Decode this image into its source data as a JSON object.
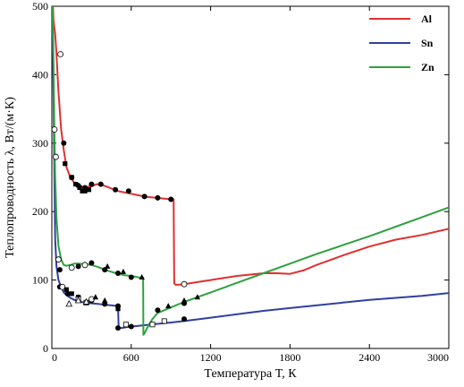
{
  "chart_data": {
    "type": "line",
    "title": "",
    "xlabel": "Температура T, К",
    "ylabel": "Теплопроводность λ, Вт/(м·К)",
    "xlim": [
      0,
      3000
    ],
    "ylim": [
      0,
      500
    ],
    "x_ticks": [
      0,
      600,
      1200,
      1800,
      2400,
      3000
    ],
    "y_ticks": [
      0,
      100,
      200,
      300,
      400,
      500
    ],
    "grid": false,
    "legend_position": "top-right",
    "series": [
      {
        "name": "Al",
        "color": "#e03030",
        "x": [
          8,
          12,
          18,
          25,
          35,
          50,
          70,
          90,
          110,
          140,
          170,
          200,
          230,
          260,
          300,
          340,
          380,
          420,
          460,
          500,
          550,
          600,
          650,
          700,
          750,
          800,
          850,
          900,
          920,
          925,
          935,
          960,
          1000,
          1100,
          1200,
          1300,
          1400,
          1500,
          1600,
          1700,
          1800,
          1900,
          2000,
          2200,
          2400,
          2600,
          2800,
          3000
        ],
        "y": [
          500,
          480,
          470,
          460,
          430,
          375,
          320,
          290,
          265,
          250,
          242,
          237,
          236,
          236,
          237,
          240,
          239,
          236,
          233,
          230,
          228,
          226,
          224,
          222,
          221,
          220,
          219,
          218,
          218,
          95,
          93,
          93,
          94,
          97,
          100,
          103,
          106,
          108,
          110,
          110,
          109,
          114,
          122,
          136,
          149,
          159,
          166,
          175
        ]
      },
      {
        "name": "Sn",
        "color": "#3040a0",
        "x": [
          5,
          8,
          12,
          18,
          25,
          35,
          50,
          70,
          90,
          110,
          140,
          170,
          200,
          250,
          300,
          350,
          400,
          450,
          500,
          505,
          510,
          530,
          560,
          600,
          700,
          800,
          900,
          1000,
          1200,
          1400,
          1600,
          1800,
          2000,
          2200,
          2400,
          2600,
          2800,
          3000
        ],
        "y": [
          500,
          440,
          380,
          270,
          160,
          120,
          100,
          90,
          82,
          78,
          74,
          71,
          69,
          67,
          66,
          65,
          64,
          63,
          62,
          31,
          30,
          30,
          31,
          32,
          34,
          36,
          38,
          40,
          45,
          50,
          55,
          59,
          63,
          67,
          71,
          74,
          77,
          81
        ]
      },
      {
        "name": "Zn",
        "color": "#30a040",
        "x": [
          5,
          8,
          12,
          18,
          25,
          35,
          50,
          70,
          90,
          110,
          140,
          170,
          200,
          250,
          300,
          350,
          400,
          450,
          500,
          550,
          600,
          650,
          690,
          692,
          700,
          720,
          760,
          800,
          900,
          1000,
          1200,
          1400,
          1600,
          1800,
          2000,
          2200,
          2400,
          2600,
          2800,
          3000
        ],
        "y": [
          500,
          470,
          420,
          330,
          250,
          190,
          150,
          130,
          122,
          121,
          122,
          124,
          124,
          123,
          122,
          119,
          115,
          112,
          109,
          107,
          106,
          104,
          103,
          20,
          22,
          30,
          43,
          52,
          60,
          68,
          82,
          96,
          110,
          124,
          138,
          151,
          164,
          178,
          192,
          206
        ]
      }
    ],
    "markers": {
      "filled_circle": [
        [
          60,
          115
        ],
        [
          90,
          300
        ],
        [
          150,
          250
        ],
        [
          200,
          238
        ],
        [
          250,
          235
        ],
        [
          300,
          240
        ],
        [
          370,
          240
        ],
        [
          480,
          232
        ],
        [
          580,
          230
        ],
        [
          700,
          222
        ],
        [
          800,
          220
        ],
        [
          900,
          218
        ],
        [
          60,
          90
        ],
        [
          120,
          80
        ],
        [
          200,
          75
        ],
        [
          300,
          70
        ],
        [
          400,
          65
        ],
        [
          500,
          62
        ],
        [
          500,
          30
        ],
        [
          600,
          32
        ],
        [
          1000,
          43
        ],
        [
          200,
          120
        ],
        [
          300,
          125
        ],
        [
          400,
          115
        ],
        [
          500,
          110
        ],
        [
          600,
          104
        ],
        [
          800,
          56
        ],
        [
          1000,
          66
        ]
      ],
      "open_circle": [
        [
          20,
          320
        ],
        [
          30,
          280
        ],
        [
          50,
          130
        ],
        [
          65,
          430
        ],
        [
          80,
          90
        ],
        [
          150,
          118
        ],
        [
          250,
          122
        ],
        [
          300,
          72
        ],
        [
          1000,
          94
        ]
      ],
      "filled_square": [
        [
          100,
          270
        ],
        [
          150,
          250
        ],
        [
          180,
          240
        ],
        [
          210,
          235
        ],
        [
          230,
          230
        ],
        [
          250,
          230
        ],
        [
          280,
          232
        ],
        [
          110,
          86
        ],
        [
          150,
          80
        ],
        [
          200,
          75
        ],
        [
          500,
          58
        ]
      ],
      "open_square": [
        [
          200,
          72
        ],
        [
          260,
          67
        ],
        [
          560,
          35
        ],
        [
          760,
          35
        ],
        [
          850,
          40
        ]
      ],
      "filled_triangle": [
        [
          330,
          75
        ],
        [
          400,
          70
        ],
        [
          420,
          120
        ],
        [
          540,
          112
        ],
        [
          680,
          104
        ],
        [
          880,
          62
        ],
        [
          1000,
          70
        ],
        [
          1100,
          75
        ]
      ],
      "open_triangle": [
        [
          130,
          65
        ],
        [
          200,
          70
        ],
        [
          260,
          68
        ]
      ]
    }
  }
}
